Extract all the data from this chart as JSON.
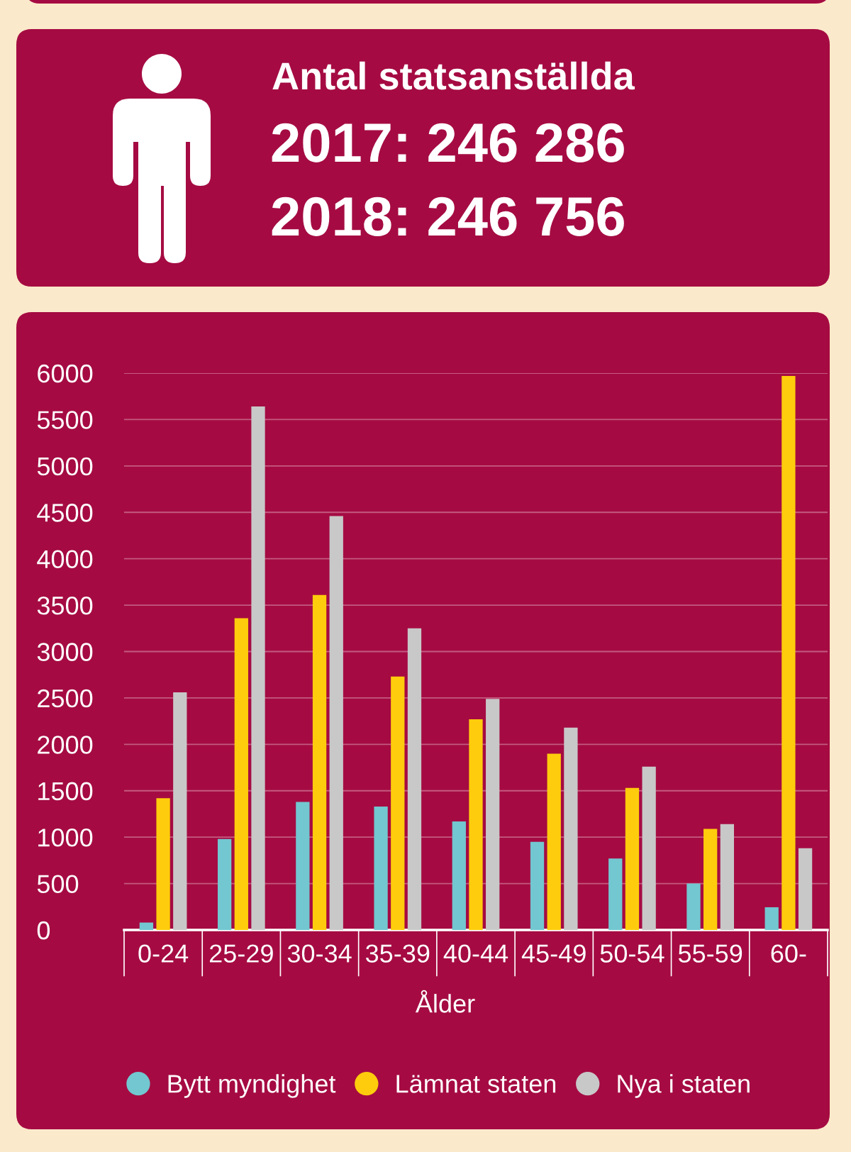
{
  "chart_data": {
    "type": "bar",
    "title": "Antal statsanställda",
    "annotations": [
      "2017: 246 286",
      "2018: 246 756"
    ],
    "xlabel": "Ålder",
    "categories": [
      "0-24",
      "25-29",
      "30-34",
      "35-39",
      "40-44",
      "45-49",
      "50-54",
      "55-59",
      "60-"
    ],
    "series": [
      {
        "name": "Bytt myndighet",
        "color": "#72c7d0",
        "values": [
          80,
          980,
          1380,
          1330,
          1170,
          950,
          770,
          500,
          245
        ]
      },
      {
        "name": "Lämnat staten",
        "color": "#fecc0c",
        "values": [
          1420,
          3360,
          3610,
          2730,
          2270,
          1900,
          1530,
          1090,
          5970
        ]
      },
      {
        "name": "Nya i staten",
        "color": "#c8c8c8",
        "values": [
          2560,
          5640,
          4460,
          3250,
          2490,
          2180,
          1760,
          1140,
          880
        ]
      }
    ],
    "ylim": [
      0,
      6000
    ],
    "yticks": [
      0,
      500,
      1000,
      1500,
      2000,
      2500,
      3000,
      3500,
      4000,
      4500,
      5000,
      5500,
      6000
    ],
    "grid": "y",
    "legend": "bottom"
  }
}
